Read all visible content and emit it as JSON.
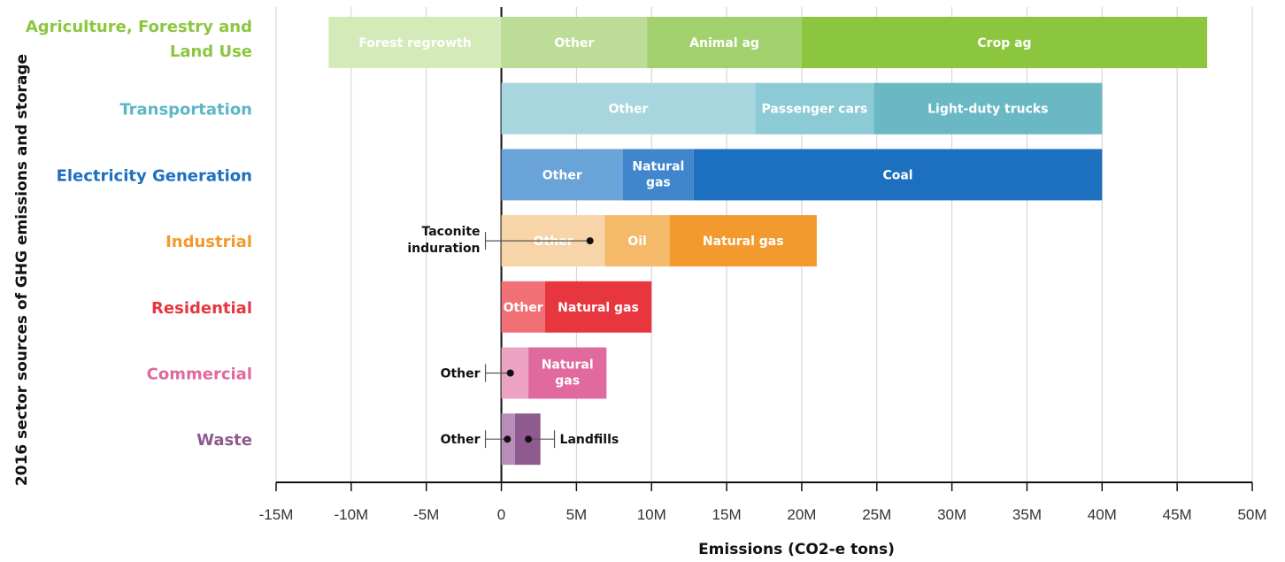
{
  "chart_data": {
    "type": "bar",
    "orientation": "horizontal",
    "stacked": true,
    "title": "",
    "xlabel": "Emissions (CO2-e tons)",
    "ylabel": "2016 sector sources of GHG emissions and storage",
    "xlim": [
      -15000000,
      50000000
    ],
    "xticks": [
      -15000000,
      -10000000,
      -5000000,
      0,
      5000000,
      10000000,
      15000000,
      20000000,
      25000000,
      30000000,
      35000000,
      40000000,
      45000000,
      50000000
    ],
    "xtick_labels": [
      "-15M",
      "-10M",
      "-5M",
      "0",
      "5M",
      "10M",
      "15M",
      "20M",
      "25M",
      "30M",
      "35M",
      "40M",
      "45M",
      "50M"
    ],
    "grid": true,
    "sectors": [
      {
        "name": "Agriculture, Forestry and Land Use",
        "label_lines": [
          "Agriculture, Forestry and",
          "Land Use"
        ],
        "color": "#8cc63f",
        "segments": [
          {
            "label": "Forest regrowth",
            "start": -11500000,
            "end": 0,
            "color": "#d4eab8"
          },
          {
            "label": "Other",
            "start": 0,
            "end": 9700000,
            "color": "#bddc97"
          },
          {
            "label": "Animal ag",
            "start": 9700000,
            "end": 20000000,
            "color": "#a3d16e"
          },
          {
            "label": "Crop ag",
            "start": 20000000,
            "end": 47000000,
            "color": "#8cc63f"
          }
        ],
        "callouts": []
      },
      {
        "name": "Transportation",
        "label_lines": [
          "Transportation"
        ],
        "color": "#5db6c6",
        "segments": [
          {
            "label": "Other",
            "start": 0,
            "end": 16900000,
            "color": "#a8d6de"
          },
          {
            "label": "Passenger cars",
            "start": 16900000,
            "end": 24800000,
            "color": "#8ccbd5"
          },
          {
            "label": "Light-duty trucks",
            "start": 24800000,
            "end": 40000000,
            "color": "#6ab8c4"
          }
        ],
        "callouts": []
      },
      {
        "name": "Electricity Generation",
        "label_lines": [
          "Electricity Generation"
        ],
        "color": "#1d6fc0",
        "segments": [
          {
            "label": "Other",
            "start": 0,
            "end": 8100000,
            "color": "#6aa3d8"
          },
          {
            "label": "Natural gas",
            "label_lines": [
              "Natural",
              "gas"
            ],
            "start": 8100000,
            "end": 12800000,
            "color": "#3f86cc"
          },
          {
            "label": "Coal",
            "start": 12800000,
            "end": 40000000,
            "color": "#1d6fc0"
          }
        ],
        "callouts": []
      },
      {
        "name": "Industrial",
        "label_lines": [
          "Industrial"
        ],
        "color": "#f29a2e",
        "segments": [
          {
            "label": "Other",
            "start": 0,
            "end": 6900000,
            "color": "#f8d5a8"
          },
          {
            "label": "Oil",
            "start": 6900000,
            "end": 11200000,
            "color": "#f5b96a"
          },
          {
            "label": "Natural gas",
            "start": 11200000,
            "end": 21000000,
            "color": "#f29a2e"
          }
        ],
        "callouts": [
          {
            "label": "Taconite",
            "label2": "induration",
            "value": 5900000,
            "side": "left"
          }
        ]
      },
      {
        "name": "Residential",
        "label_lines": [
          "Residential"
        ],
        "color": "#e8363f",
        "segments": [
          {
            "label": "Other",
            "start": 0,
            "end": 2900000,
            "color": "#f07076"
          },
          {
            "label": "Natural gas",
            "start": 2900000,
            "end": 10000000,
            "color": "#e8363f"
          }
        ],
        "callouts": []
      },
      {
        "name": "Commercial",
        "label_lines": [
          "Commercial"
        ],
        "color": "#e0699e",
        "segments": [
          {
            "label": "",
            "start": 0,
            "end": 1800000,
            "color": "#eca2c3"
          },
          {
            "label": "Natural gas",
            "label_lines": [
              "Natural",
              "gas"
            ],
            "start": 1800000,
            "end": 7000000,
            "color": "#e0699e"
          }
        ],
        "callouts": [
          {
            "label": "Other",
            "value": 600000,
            "side": "left"
          }
        ]
      },
      {
        "name": "Waste",
        "label_lines": [
          "Waste"
        ],
        "color": "#8e5a8f",
        "segments": [
          {
            "label": "",
            "start": 0,
            "end": 900000,
            "color": "#b98db9"
          },
          {
            "label": "",
            "start": 900000,
            "end": 2600000,
            "color": "#8e5a8f"
          }
        ],
        "callouts": [
          {
            "label": "Other",
            "value": 400000,
            "side": "left"
          },
          {
            "label": "Landfills",
            "value": 1800000,
            "side": "right"
          }
        ]
      }
    ]
  }
}
